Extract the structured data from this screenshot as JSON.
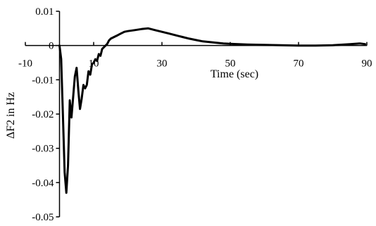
{
  "chart_data": {
    "type": "line",
    "title": "",
    "xlabel": "Time (sec)",
    "ylabel": "ΔF2 in Hz",
    "xlim": [
      -10,
      90
    ],
    "ylim": [
      -0.05,
      0.01
    ],
    "grid": false,
    "x_ticks": [
      -10,
      10,
      30,
      50,
      70,
      90
    ],
    "x_tick_labels": [
      "-10",
      "10",
      "30",
      "50",
      "70",
      "90"
    ],
    "y_ticks": [
      0.01,
      0,
      -0.01,
      -0.02,
      -0.03,
      -0.04,
      -0.05
    ],
    "y_tick_labels": [
      "0.01",
      "0",
      "-0.01",
      "-0.02",
      "-0.03",
      "-0.04",
      "-0.05"
    ],
    "series": [
      {
        "x": [
          0,
          0.5,
          1.0,
          1.5,
          2.0,
          2.5,
          3.0,
          3.5,
          4.0,
          4.5,
          5.0,
          5.5,
          6.0,
          6.5,
          7.0,
          7.5,
          8.0,
          8.5,
          9.0,
          9.5,
          10.0,
          10.5,
          11.0,
          11.5,
          12.0,
          12.5,
          13.0,
          13.5,
          14.0,
          14.5,
          15,
          16,
          17,
          18,
          19,
          20,
          22,
          24,
          26,
          28,
          30,
          32,
          34,
          36,
          38,
          40,
          42,
          44,
          46,
          48,
          50,
          55,
          60,
          65,
          70,
          75,
          80,
          85,
          88,
          89.5
        ],
        "y": [
          0,
          -0.004,
          -0.02,
          -0.037,
          -0.043,
          -0.035,
          -0.016,
          -0.021,
          -0.015,
          -0.009,
          -0.0065,
          -0.013,
          -0.0185,
          -0.0155,
          -0.0115,
          -0.0125,
          -0.0115,
          -0.0075,
          -0.0085,
          -0.0055,
          -0.005,
          -0.004,
          -0.0045,
          -0.0025,
          -0.003,
          -0.001,
          -0.0005,
          0.0,
          0.0005,
          0.0015,
          0.002,
          0.0025,
          0.003,
          0.0035,
          0.004,
          0.0042,
          0.0045,
          0.0048,
          0.005,
          0.0045,
          0.004,
          0.0035,
          0.003,
          0.0025,
          0.002,
          0.0016,
          0.0012,
          0.001,
          0.0008,
          0.0006,
          0.0005,
          0.0003,
          0.0002,
          0.0001,
          0.0,
          0.0,
          0.0001,
          0.0004,
          0.0006,
          0.0004
        ]
      }
    ]
  }
}
